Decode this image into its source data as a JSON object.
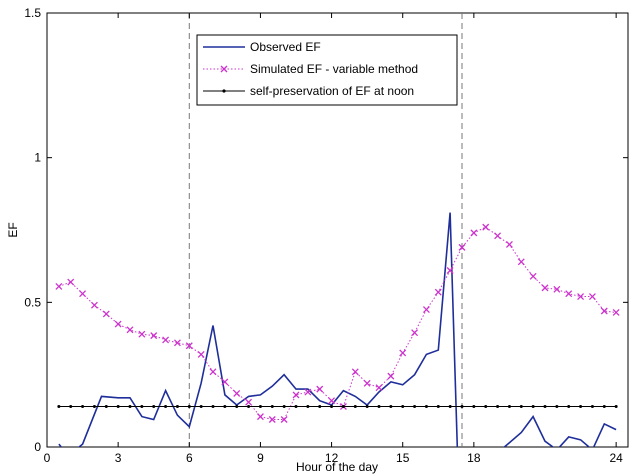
{
  "chart_data": {
    "type": "line",
    "title": "",
    "xlabel": "Hour of the day",
    "ylabel": "EF",
    "xlim": [
      0,
      24.5
    ],
    "ylim": [
      0,
      1.5
    ],
    "xticks": [
      0,
      3,
      6,
      9,
      12,
      15,
      18,
      24
    ],
    "yticks": [
      0,
      0.5,
      1,
      1.5
    ],
    "xtick_labels": [
      "0",
      "3",
      "6",
      "9",
      "12",
      "15",
      "18",
      "24"
    ],
    "ytick_labels": [
      "0",
      "0.5",
      "1",
      "1.5"
    ],
    "grid": false,
    "legend_position": "top-center",
    "vertical_lines": [
      6,
      17.5
    ],
    "series": [
      {
        "name": "Observed EF",
        "color": "#1f2f9a",
        "style": "solid",
        "marker": "none",
        "x": [
          0.5,
          0.9,
          1.5,
          2.3,
          3.0,
          3.5,
          4.0,
          4.5,
          5.0,
          5.5,
          6.0,
          6.5,
          7.0,
          7.5,
          8.0,
          8.5,
          9.0,
          9.5,
          10.0,
          10.5,
          11.0,
          11.5,
          12.0,
          12.5,
          13.0,
          13.5,
          14.0,
          14.5,
          15.0,
          15.5,
          16.0,
          16.5,
          17.0,
          17.3,
          17.6,
          18.0,
          19.0,
          20.0,
          20.5,
          21.0,
          21.5,
          22.0,
          22.5,
          23.0,
          23.5,
          24.0
        ],
        "y": [
          0.01,
          -0.03,
          0.01,
          0.175,
          0.17,
          0.17,
          0.105,
          0.095,
          0.195,
          0.11,
          0.07,
          0.22,
          0.42,
          0.18,
          0.145,
          0.175,
          0.18,
          0.21,
          0.25,
          0.2,
          0.2,
          0.16,
          0.145,
          0.195,
          0.175,
          0.145,
          0.19,
          0.225,
          0.215,
          0.25,
          0.32,
          0.335,
          0.81,
          0.0,
          -0.02,
          -0.02,
          -0.02,
          0.05,
          0.105,
          0.02,
          -0.01,
          0.035,
          0.025,
          -0.01,
          0.08,
          0.06
        ]
      },
      {
        "name": "Simulated EF - variable method",
        "color": "#cc33cc",
        "style": "dotted",
        "marker": "x",
        "x": [
          0.5,
          1.0,
          1.5,
          2.0,
          2.5,
          3.0,
          3.5,
          4.0,
          4.5,
          5.0,
          5.5,
          6.0,
          6.5,
          7.0,
          7.5,
          8.0,
          8.5,
          9.0,
          9.5,
          10.0,
          10.5,
          11.0,
          11.5,
          12.0,
          12.5,
          13.0,
          13.5,
          14.0,
          14.5,
          15.0,
          15.5,
          16.0,
          16.5,
          17.0,
          17.5,
          18.0,
          18.5,
          19.0,
          19.5,
          20.0,
          20.5,
          21.0,
          21.5,
          22.0,
          22.5,
          23.0,
          23.5,
          24.0
        ],
        "y": [
          0.555,
          0.57,
          0.53,
          0.49,
          0.46,
          0.425,
          0.405,
          0.39,
          0.385,
          0.37,
          0.36,
          0.35,
          0.32,
          0.26,
          0.225,
          0.185,
          0.155,
          0.105,
          0.095,
          0.095,
          0.18,
          0.19,
          0.2,
          0.16,
          0.14,
          0.26,
          0.22,
          0.205,
          0.245,
          0.325,
          0.395,
          0.475,
          0.535,
          0.61,
          0.69,
          0.74,
          0.76,
          0.73,
          0.7,
          0.64,
          0.59,
          0.55,
          0.545,
          0.53,
          0.52,
          0.52,
          0.47,
          0.465
        ]
      },
      {
        "name": "self-preservation of EF at noon",
        "color": "#000000",
        "style": "solid",
        "marker": "dot",
        "x": [
          0.5,
          1.0,
          1.5,
          2.0,
          2.5,
          3.0,
          3.5,
          4.0,
          4.5,
          5.0,
          5.5,
          6.0,
          6.5,
          7.0,
          7.5,
          8.0,
          8.5,
          9.0,
          9.5,
          10.0,
          10.5,
          11.0,
          11.5,
          12.0,
          12.5,
          13.0,
          13.5,
          14.0,
          14.5,
          15.0,
          15.5,
          16.0,
          16.5,
          17.0,
          17.5,
          18.0,
          18.5,
          19.0,
          19.5,
          20.0,
          20.5,
          21.0,
          21.5,
          22.0,
          22.5,
          23.0,
          23.5,
          24.0
        ],
        "y": [
          0.14,
          0.14,
          0.14,
          0.14,
          0.14,
          0.14,
          0.14,
          0.14,
          0.14,
          0.14,
          0.14,
          0.14,
          0.14,
          0.14,
          0.14,
          0.14,
          0.14,
          0.14,
          0.14,
          0.14,
          0.14,
          0.14,
          0.14,
          0.14,
          0.14,
          0.14,
          0.14,
          0.14,
          0.14,
          0.14,
          0.14,
          0.14,
          0.14,
          0.14,
          0.14,
          0.14,
          0.14,
          0.14,
          0.14,
          0.14,
          0.14,
          0.14,
          0.14,
          0.14,
          0.14,
          0.14,
          0.14,
          0.14
        ]
      }
    ]
  }
}
